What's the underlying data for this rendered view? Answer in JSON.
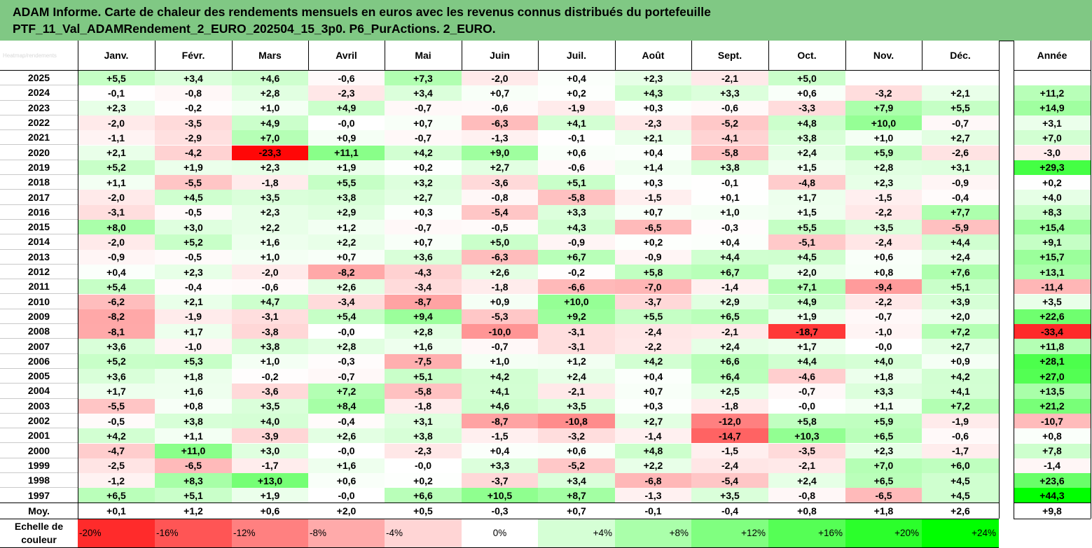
{
  "header": {
    "title_line1": "ADAM Informe. Carte de chaleur des rendements mensuels en euros avec les revenus connus distribués du portefeuille",
    "title_line2": "PTF_11_Val_ADAMRendement_2_EURO_202504_15_3p0. P6_PurActions. 2_EURO."
  },
  "corner_label": "Heatmap/rendements",
  "colors": {
    "header_bg": "#80c884",
    "negative_max": "#ff0000",
    "positive_max": "#00ff00",
    "neutral": "#ffffff"
  },
  "chart_data": {
    "type": "heatmap",
    "title": "ADAM Informe. Carte de chaleur des rendements mensuels en euros avec les revenus connus distribués du portefeuille PTF_11_Val_ADAMRendement_2_EURO_202504_15_3p0. P6_PurActions. 2_EURO.",
    "columns": [
      "Janv.",
      "Févr.",
      "Mars",
      "Avril",
      "Mai",
      "Juin",
      "Juil.",
      "Août",
      "Sept.",
      "Oct.",
      "Nov.",
      "Déc."
    ],
    "annual_column": "Année",
    "rows": [
      {
        "year": "2025",
        "values": [
          "+5,5",
          "+3,4",
          "+4,6",
          "-0,6",
          "+7,3",
          "-2,0",
          "+0,4",
          "+2,3",
          "-2,1",
          "+5,0",
          "",
          ""
        ],
        "annual": ""
      },
      {
        "year": "2024",
        "values": [
          "-0,1",
          "-0,8",
          "+2,8",
          "-2,3",
          "+3,4",
          "+0,7",
          "+0,2",
          "+4,3",
          "+3,3",
          "+0,6",
          "-3,2",
          "+2,1"
        ],
        "annual": "+11,2"
      },
      {
        "year": "2023",
        "values": [
          "+2,3",
          "-0,2",
          "+1,0",
          "+4,9",
          "-0,7",
          "-0,6",
          "-1,9",
          "+0,3",
          "-0,6",
          "-3,3",
          "+7,9",
          "+5,5"
        ],
        "annual": "+14,9"
      },
      {
        "year": "2022",
        "values": [
          "-2,0",
          "-3,5",
          "+4,9",
          "-0,0",
          "+0,7",
          "-6,3",
          "+4,1",
          "-2,3",
          "-5,2",
          "+4,8",
          "+10,0",
          "-0,7"
        ],
        "annual": "+3,1"
      },
      {
        "year": "2021",
        "values": [
          "-1,1",
          "-2,9",
          "+7,0",
          "+0,9",
          "-0,7",
          "-1,3",
          "-0,1",
          "+2,1",
          "-4,1",
          "+3,8",
          "+1,0",
          "+2,7"
        ],
        "annual": "+7,0"
      },
      {
        "year": "2020",
        "values": [
          "+2,1",
          "-4,2",
          "-23,3",
          "+11,1",
          "+4,2",
          "+9,0",
          "+0,6",
          "+0,4",
          "-5,8",
          "+2,4",
          "+5,9",
          "-2,6"
        ],
        "annual": "-3,0"
      },
      {
        "year": "2019",
        "values": [
          "+5,2",
          "+1,9",
          "+2,3",
          "+1,9",
          "+0,2",
          "+2,7",
          "-0,6",
          "+1,4",
          "+3,8",
          "+1,5",
          "+2,8",
          "+3,1"
        ],
        "annual": "+29,3"
      },
      {
        "year": "2018",
        "values": [
          "+1,1",
          "-5,5",
          "-1,8",
          "+5,5",
          "+3,2",
          "-3,6",
          "+5,1",
          "+0,3",
          "-0,1",
          "-4,8",
          "+2,3",
          "-0,9"
        ],
        "annual": "+0,2"
      },
      {
        "year": "2017",
        "values": [
          "-2,0",
          "+4,5",
          "+3,5",
          "+3,8",
          "+2,7",
          "-0,8",
          "-5,8",
          "-1,5",
          "+0,1",
          "+1,7",
          "-1,5",
          "-0,4"
        ],
        "annual": "+4,0"
      },
      {
        "year": "2016",
        "values": [
          "-3,1",
          "-0,5",
          "+2,3",
          "+2,9",
          "+0,3",
          "-5,4",
          "+3,3",
          "+0,7",
          "+1,0",
          "+1,5",
          "-2,2",
          "+7,7"
        ],
        "annual": "+8,3"
      },
      {
        "year": "2015",
        "values": [
          "+8,0",
          "+3,0",
          "+2,2",
          "+1,2",
          "-0,7",
          "-0,5",
          "+4,3",
          "-6,5",
          "-0,3",
          "+5,5",
          "+3,5",
          "-5,9"
        ],
        "annual": "+15,4"
      },
      {
        "year": "2014",
        "values": [
          "-2,0",
          "+5,2",
          "+1,6",
          "+2,2",
          "+0,7",
          "+5,0",
          "-0,9",
          "+0,2",
          "+0,4",
          "-5,1",
          "-2,4",
          "+4,4"
        ],
        "annual": "+9,1"
      },
      {
        "year": "2013",
        "values": [
          "-0,9",
          "-0,5",
          "+1,0",
          "+0,7",
          "+3,6",
          "-6,3",
          "+6,7",
          "-0,9",
          "+4,4",
          "+4,5",
          "+0,6",
          "+2,4"
        ],
        "annual": "+15,7"
      },
      {
        "year": "2012",
        "values": [
          "+0,4",
          "+2,3",
          "-2,0",
          "-8,2",
          "-4,3",
          "+2,6",
          "-0,2",
          "+5,8",
          "+6,7",
          "+2,0",
          "+0,8",
          "+7,6"
        ],
        "annual": "+13,1"
      },
      {
        "year": "2011",
        "values": [
          "+5,4",
          "-0,4",
          "-0,6",
          "+2,6",
          "-3,4",
          "-1,8",
          "-6,6",
          "-7,0",
          "-1,4",
          "+7,1",
          "-9,4",
          "+5,1"
        ],
        "annual": "-11,4"
      },
      {
        "year": "2010",
        "values": [
          "-6,2",
          "+2,1",
          "+4,7",
          "-3,4",
          "-8,7",
          "+0,9",
          "+10,0",
          "-3,7",
          "+2,9",
          "+4,9",
          "-2,2",
          "+3,9"
        ],
        "annual": "+3,5"
      },
      {
        "year": "2009",
        "values": [
          "-8,2",
          "-1,9",
          "-3,1",
          "+5,4",
          "+9,4",
          "-5,3",
          "+9,2",
          "+5,5",
          "+6,5",
          "+1,9",
          "-0,7",
          "+2,0"
        ],
        "annual": "+22,6"
      },
      {
        "year": "2008",
        "values": [
          "-8,1",
          "+1,7",
          "-3,8",
          "-0,0",
          "+2,8",
          "-10,0",
          "-3,1",
          "-2,4",
          "-2,1",
          "-18,7",
          "-1,0",
          "+7,2"
        ],
        "annual": "-33,4"
      },
      {
        "year": "2007",
        "values": [
          "+3,6",
          "-1,0",
          "+3,8",
          "+2,8",
          "+1,6",
          "-0,7",
          "-3,1",
          "-2,2",
          "+2,4",
          "+1,7",
          "-0,0",
          "+2,7"
        ],
        "annual": "+11,8"
      },
      {
        "year": "2006",
        "values": [
          "+5,2",
          "+5,3",
          "+1,0",
          "-0,3",
          "-7,5",
          "+1,0",
          "+1,2",
          "+4,2",
          "+6,6",
          "+4,4",
          "+4,0",
          "+0,9"
        ],
        "annual": "+28,1"
      },
      {
        "year": "2005",
        "values": [
          "+3,6",
          "+1,8",
          "-0,2",
          "-0,7",
          "+5,1",
          "+4,2",
          "+2,4",
          "+0,4",
          "+6,4",
          "-4,6",
          "+1,8",
          "+4,2"
        ],
        "annual": "+27,0"
      },
      {
        "year": "2004",
        "values": [
          "+1,7",
          "+1,6",
          "-3,6",
          "+7,2",
          "-5,8",
          "+4,1",
          "-2,1",
          "+0,7",
          "+2,5",
          "-0,7",
          "+3,3",
          "+4,1"
        ],
        "annual": "+13,5"
      },
      {
        "year": "2003",
        "values": [
          "-5,5",
          "+0,8",
          "+3,5",
          "+8,4",
          "-1,8",
          "+4,6",
          "+3,5",
          "+0,3",
          "-1,8",
          "-0,0",
          "+1,1",
          "+7,2"
        ],
        "annual": "+21,2"
      },
      {
        "year": "2002",
        "values": [
          "-0,5",
          "+3,8",
          "+4,0",
          "-0,4",
          "+3,1",
          "-8,7",
          "-10,8",
          "+2,7",
          "-12,0",
          "+5,8",
          "+5,9",
          "-1,9"
        ],
        "annual": "-10,7"
      },
      {
        "year": "2001",
        "values": [
          "+4,2",
          "+1,1",
          "-3,9",
          "+2,6",
          "+3,8",
          "-1,5",
          "-3,2",
          "-1,4",
          "-14,7",
          "+10,3",
          "+6,5",
          "-0,6"
        ],
        "annual": "+0,8"
      },
      {
        "year": "2000",
        "values": [
          "-4,7",
          "+11,0",
          "+3,0",
          "-0,0",
          "-2,3",
          "+0,4",
          "+0,6",
          "+4,8",
          "-1,5",
          "-3,5",
          "+2,3",
          "-1,7"
        ],
        "annual": "+7,8"
      },
      {
        "year": "1999",
        "values": [
          "-2,5",
          "-6,5",
          "-1,7",
          "+1,6",
          "-0,0",
          "+3,3",
          "-5,2",
          "+2,2",
          "-2,4",
          "-2,1",
          "+7,0",
          "+6,0"
        ],
        "annual": "-1,4"
      },
      {
        "year": "1998",
        "values": [
          "-1,2",
          "+8,3",
          "+13,0",
          "+0,6",
          "+0,2",
          "-3,7",
          "+3,4",
          "-6,8",
          "-5,4",
          "+2,4",
          "+6,5",
          "+4,5"
        ],
        "annual": "+23,6"
      },
      {
        "year": "1997",
        "values": [
          "+6,5",
          "+5,1",
          "+1,9",
          "-0,0",
          "+6,6",
          "+10,5",
          "+8,7",
          "-1,3",
          "+3,5",
          "-0,8",
          "-6,5",
          "+4,5"
        ],
        "annual": "+44,3"
      }
    ],
    "average_row": {
      "label": "Moy.",
      "values": [
        "+0,1",
        "+1,2",
        "+0,6",
        "+2,0",
        "+0,5",
        "-0,3",
        "+0,7",
        "-0,1",
        "-0,4",
        "+0,8",
        "+1,8",
        "+2,6"
      ],
      "annual": "+9,8"
    },
    "color_scale": {
      "label_line1": "Echelle de",
      "label_line2": "couleur",
      "steps": [
        {
          "label": "-20%",
          "value": -20
        },
        {
          "label": "-16%",
          "value": -16
        },
        {
          "label": "-12%",
          "value": -12
        },
        {
          "label": "-8%",
          "value": -8
        },
        {
          "label": "-4%",
          "value": -4
        },
        {
          "label": "0%",
          "value": 0
        },
        {
          "label": "+4%",
          "value": 4
        },
        {
          "label": "+8%",
          "value": 8
        },
        {
          "label": "+12%",
          "value": 12
        },
        {
          "label": "+16%",
          "value": 16
        },
        {
          "label": "+20%",
          "value": 20
        },
        {
          "label": "+24%",
          "value": 24
        }
      ],
      "saturation_monthly": 24,
      "saturation_annual": 40
    }
  }
}
